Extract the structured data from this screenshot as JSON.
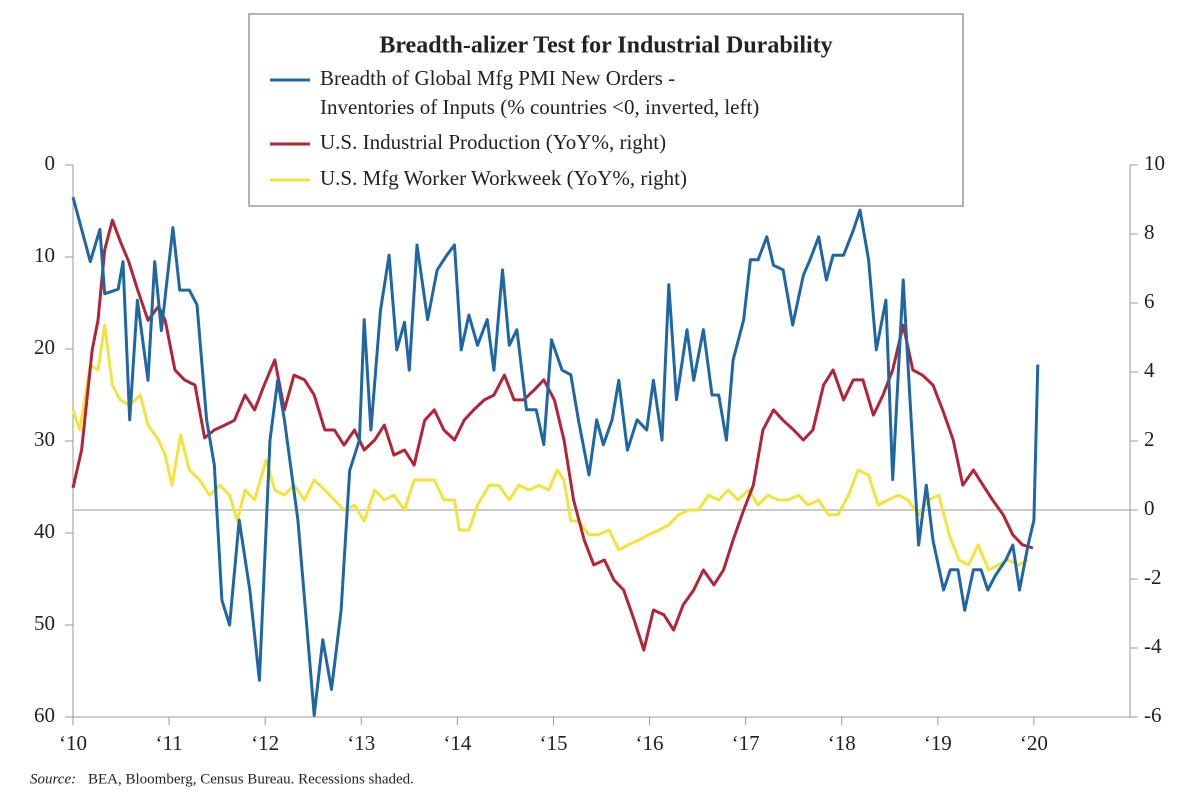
{
  "chart_data": {
    "type": "line",
    "title": "Breadth-alizer Test for Industrial Durability",
    "source_label": "Source:",
    "source": "BEA, Bloomberg, Census Bureau. Recessions shaded.",
    "xlim": [
      2010,
      2021
    ],
    "xticks": [
      {
        "value": 2010,
        "label": "‘10"
      },
      {
        "value": 2011,
        "label": "‘11"
      },
      {
        "value": 2012,
        "label": "‘12"
      },
      {
        "value": 2013,
        "label": "‘13"
      },
      {
        "value": 2014,
        "label": "‘14"
      },
      {
        "value": 2015,
        "label": "‘15"
      },
      {
        "value": 2016,
        "label": "‘16"
      },
      {
        "value": 2017,
        "label": "‘17"
      },
      {
        "value": 2018,
        "label": "‘18"
      },
      {
        "value": 2019,
        "label": "‘19"
      },
      {
        "value": 2020,
        "label": "‘20"
      }
    ],
    "ylim": [
      0,
      60
    ],
    "y_inverted": true,
    "yticks": [
      0,
      10,
      20,
      30,
      40,
      50,
      60
    ],
    "y2lim": [
      -6,
      10
    ],
    "y2ticks": [
      -6,
      -4,
      -2,
      0,
      2,
      4,
      6,
      8,
      10
    ],
    "series": [
      {
        "name": [
          "Breadth of Global Mfg PMI New Orders -",
          "Inventories of Inputs (% countries <0, inverted, left)"
        ],
        "color": "#1f67a3",
        "axis": "y",
        "x": [
          2010.0,
          2010.18,
          2010.28,
          2010.33,
          2010.47,
          2010.52,
          2010.59,
          2010.67,
          2010.78,
          2010.85,
          2010.92,
          2011.04,
          2011.11,
          2011.21,
          2011.29,
          2011.39,
          2011.47,
          2011.55,
          2011.63,
          2011.73,
          2011.84,
          2011.94,
          2012.05,
          2012.13,
          2012.2,
          2012.34,
          2012.41,
          2012.51,
          2012.6,
          2012.69,
          2012.79,
          2012.88,
          2012.98,
          2013.03,
          2013.1,
          2013.2,
          2013.29,
          2013.37,
          2013.45,
          2013.5,
          2013.58,
          2013.69,
          2013.79,
          2013.89,
          2013.97,
          2014.04,
          2014.12,
          2014.21,
          2014.31,
          2014.38,
          2014.47,
          2014.54,
          2014.62,
          2014.72,
          2014.82,
          2014.9,
          2014.98,
          2015.09,
          2015.18,
          2015.26,
          2015.37,
          2015.45,
          2015.52,
          2015.61,
          2015.68,
          2015.77,
          2015.87,
          2015.97,
          2016.04,
          2016.13,
          2016.2,
          2016.28,
          2016.39,
          2016.46,
          2016.56,
          2016.65,
          2016.72,
          2016.8,
          2016.87,
          2016.98,
          2017.05,
          2017.13,
          2017.22,
          2017.29,
          2017.39,
          2017.49,
          2017.6,
          2017.67,
          2017.76,
          2017.84,
          2017.91,
          2018.02,
          2018.12,
          2018.19,
          2018.28,
          2018.36,
          2018.46,
          2018.53,
          2018.64,
          2018.71,
          2018.8,
          2018.88,
          2018.95,
          2019.06,
          2019.13,
          2019.21,
          2019.28,
          2019.37,
          2019.45,
          2019.52,
          2019.6,
          2019.71,
          2019.78,
          2019.85,
          2019.94,
          2020.0,
          2020.04
        ],
        "values": [
          3.5,
          10.5,
          7,
          14,
          13.5,
          10.5,
          27.7,
          14.7,
          23.4,
          10.5,
          18,
          6.8,
          13.6,
          13.6,
          15.2,
          27.7,
          32.6,
          47.3,
          50,
          38.6,
          46.2,
          56,
          29.9,
          23.4,
          27.7,
          38.6,
          47.3,
          59.8,
          51.6,
          57,
          48.4,
          33.2,
          29.9,
          16.8,
          28.8,
          15.8,
          9.8,
          20.1,
          17.1,
          22.3,
          8.7,
          16.8,
          11.4,
          9.8,
          8.7,
          20.1,
          16.3,
          19.6,
          16.8,
          22.3,
          11.4,
          19.6,
          17.9,
          26.6,
          26.6,
          30.4,
          19,
          22.3,
          22.8,
          27.7,
          33.7,
          27.7,
          30.4,
          27.7,
          23.4,
          31,
          27.7,
          28.8,
          23.4,
          29.9,
          13,
          25.5,
          17.9,
          23.4,
          17.9,
          25,
          25,
          29.9,
          21.2,
          16.8,
          10.3,
          10.3,
          7.8,
          10.9,
          11.4,
          17.4,
          12,
          10.3,
          7.8,
          12.5,
          9.8,
          9.8,
          7.1,
          4.9,
          10.3,
          20.1,
          14.7,
          34.2,
          12.5,
          25.5,
          41.3,
          34.8,
          40.8,
          46.2,
          44,
          44,
          48.4,
          44,
          44,
          46.2,
          44.6,
          42.9,
          41.3,
          46.2,
          41.3,
          38.6,
          21.7
        ]
      },
      {
        "name": "U.S. Industrial Production (YoY%, right)",
        "color": "#b02538",
        "axis": "y2",
        "x": [
          2010.0,
          2010.09,
          2010.2,
          2010.26,
          2010.33,
          2010.41,
          2010.49,
          2010.58,
          2010.67,
          2010.78,
          2010.89,
          2010.96,
          2011.06,
          2011.16,
          2011.27,
          2011.37,
          2011.47,
          2011.58,
          2011.68,
          2011.79,
          2011.89,
          2011.99,
          2012.1,
          2012.2,
          2012.3,
          2012.41,
          2012.51,
          2012.62,
          2012.72,
          2012.82,
          2012.93,
          2013.03,
          2013.14,
          2013.24,
          2013.34,
          2013.45,
          2013.55,
          2013.66,
          2013.76,
          2013.86,
          2013.97,
          2014.07,
          2014.17,
          2014.28,
          2014.38,
          2014.49,
          2014.59,
          2014.69,
          2014.8,
          2014.9,
          2015.01,
          2015.11,
          2015.21,
          2015.32,
          2015.42,
          2015.53,
          2015.63,
          2015.73,
          2015.84,
          2015.94,
          2016.04,
          2016.15,
          2016.25,
          2016.35,
          2016.46,
          2016.56,
          2016.67,
          2016.77,
          2016.87,
          2016.98,
          2017.08,
          2017.18,
          2017.29,
          2017.39,
          2017.5,
          2017.6,
          2017.7,
          2017.81,
          2017.91,
          2018.02,
          2018.12,
          2018.22,
          2018.33,
          2018.43,
          2018.53,
          2018.64,
          2018.74,
          2018.84,
          2018.95,
          2019.05,
          2019.16,
          2019.26,
          2019.37,
          2019.47,
          2019.57,
          2019.68,
          2019.78,
          2019.88,
          2019.99
        ],
        "values": [
          0.64,
          1.74,
          4.64,
          5.5,
          7.54,
          8.4,
          7.8,
          7.2,
          6.4,
          5.5,
          5.9,
          5.5,
          4.06,
          3.77,
          3.62,
          2.09,
          2.32,
          2.46,
          2.6,
          3.33,
          2.9,
          3.62,
          4.35,
          2.9,
          3.91,
          3.77,
          3.33,
          2.32,
          2.32,
          1.88,
          2.32,
          1.74,
          2.03,
          2.46,
          1.59,
          1.74,
          1.3,
          2.6,
          2.9,
          2.32,
          2.03,
          2.6,
          2.9,
          3.19,
          3.33,
          3.91,
          3.19,
          3.19,
          3.48,
          3.77,
          3.19,
          2.03,
          0.29,
          -0.87,
          -1.59,
          -1.45,
          -2.03,
          -2.32,
          -3.19,
          -4.06,
          -2.9,
          -3.04,
          -3.48,
          -2.75,
          -2.32,
          -1.74,
          -2.17,
          -1.74,
          -0.87,
          0,
          0.72,
          2.32,
          2.9,
          2.6,
          2.32,
          2.03,
          2.32,
          3.62,
          4.06,
          3.19,
          3.77,
          3.77,
          2.75,
          3.33,
          4.06,
          5.36,
          4.06,
          3.91,
          3.62,
          2.9,
          2.03,
          0.72,
          1.16,
          0.72,
          0.29,
          -0.14,
          -0.72,
          -1.01,
          -1.1
        ]
      },
      {
        "name": "U.S. Mfg Worker Workweek (YoY%, right)",
        "color": "#f2e33f",
        "axis": "y2",
        "x": [
          2010.0,
          2010.07,
          2010.18,
          2010.26,
          2010.33,
          2010.41,
          2010.49,
          2010.59,
          2010.7,
          2010.78,
          2010.89,
          2010.96,
          2011.03,
          2011.12,
          2011.21,
          2011.32,
          2011.42,
          2011.53,
          2011.63,
          2011.71,
          2011.79,
          2011.89,
          2012.01,
          2012.1,
          2012.2,
          2012.3,
          2012.41,
          2012.51,
          2012.62,
          2012.72,
          2012.82,
          2012.93,
          2013.03,
          2013.14,
          2013.24,
          2013.34,
          2013.45,
          2013.55,
          2013.66,
          2013.76,
          2013.86,
          2013.97,
          2014.02,
          2014.12,
          2014.21,
          2014.33,
          2014.43,
          2014.54,
          2014.64,
          2014.75,
          2014.85,
          2014.95,
          2015.04,
          2015.11,
          2015.18,
          2015.26,
          2015.37,
          2015.47,
          2015.58,
          2015.68,
          2015.78,
          2015.89,
          2015.99,
          2016.1,
          2016.2,
          2016.3,
          2016.41,
          2016.51,
          2016.61,
          2016.72,
          2016.82,
          2016.92,
          2017.03,
          2017.13,
          2017.23,
          2017.34,
          2017.44,
          2017.55,
          2017.65,
          2017.76,
          2017.86,
          2017.96,
          2018.07,
          2018.17,
          2018.28,
          2018.38,
          2018.48,
          2018.59,
          2018.69,
          2018.8,
          2018.9,
          2019.01,
          2019.12,
          2019.22,
          2019.32,
          2019.42,
          2019.53,
          2019.63,
          2019.73,
          2019.84,
          2019.94
        ],
        "values": [
          2.9,
          2.32,
          4.2,
          4.06,
          5.36,
          3.62,
          3.19,
          3.04,
          3.33,
          2.46,
          2.03,
          1.59,
          0.72,
          2.17,
          1.16,
          0.87,
          0.43,
          0.72,
          0.43,
          -0.32,
          0.58,
          0.29,
          1.45,
          0.58,
          0.43,
          0.72,
          0.29,
          0.87,
          0.58,
          0.29,
          0,
          0.14,
          -0.32,
          0.58,
          0.29,
          0.43,
          0,
          0.87,
          0.87,
          0.87,
          0.29,
          0.29,
          -0.58,
          -0.58,
          0.14,
          0.72,
          0.72,
          0.29,
          0.72,
          0.58,
          0.72,
          0.58,
          1.16,
          0.87,
          -0.32,
          -0.32,
          -0.72,
          -0.72,
          -0.58,
          -1.16,
          -1.01,
          -0.87,
          -0.72,
          -0.58,
          -0.43,
          -0.14,
          0,
          0,
          0.43,
          0.29,
          0.58,
          0.29,
          0.58,
          0.14,
          0.43,
          0.29,
          0.29,
          0.43,
          0.14,
          0.29,
          -0.14,
          -0.14,
          0.43,
          1.16,
          1.01,
          0.14,
          0.29,
          0.43,
          0.29,
          -0.14,
          0.29,
          0.43,
          -0.72,
          -1.45,
          -1.59,
          -1.01,
          -1.74,
          -1.59,
          -1.45,
          -1.59,
          -1.45
        ]
      }
    ]
  }
}
